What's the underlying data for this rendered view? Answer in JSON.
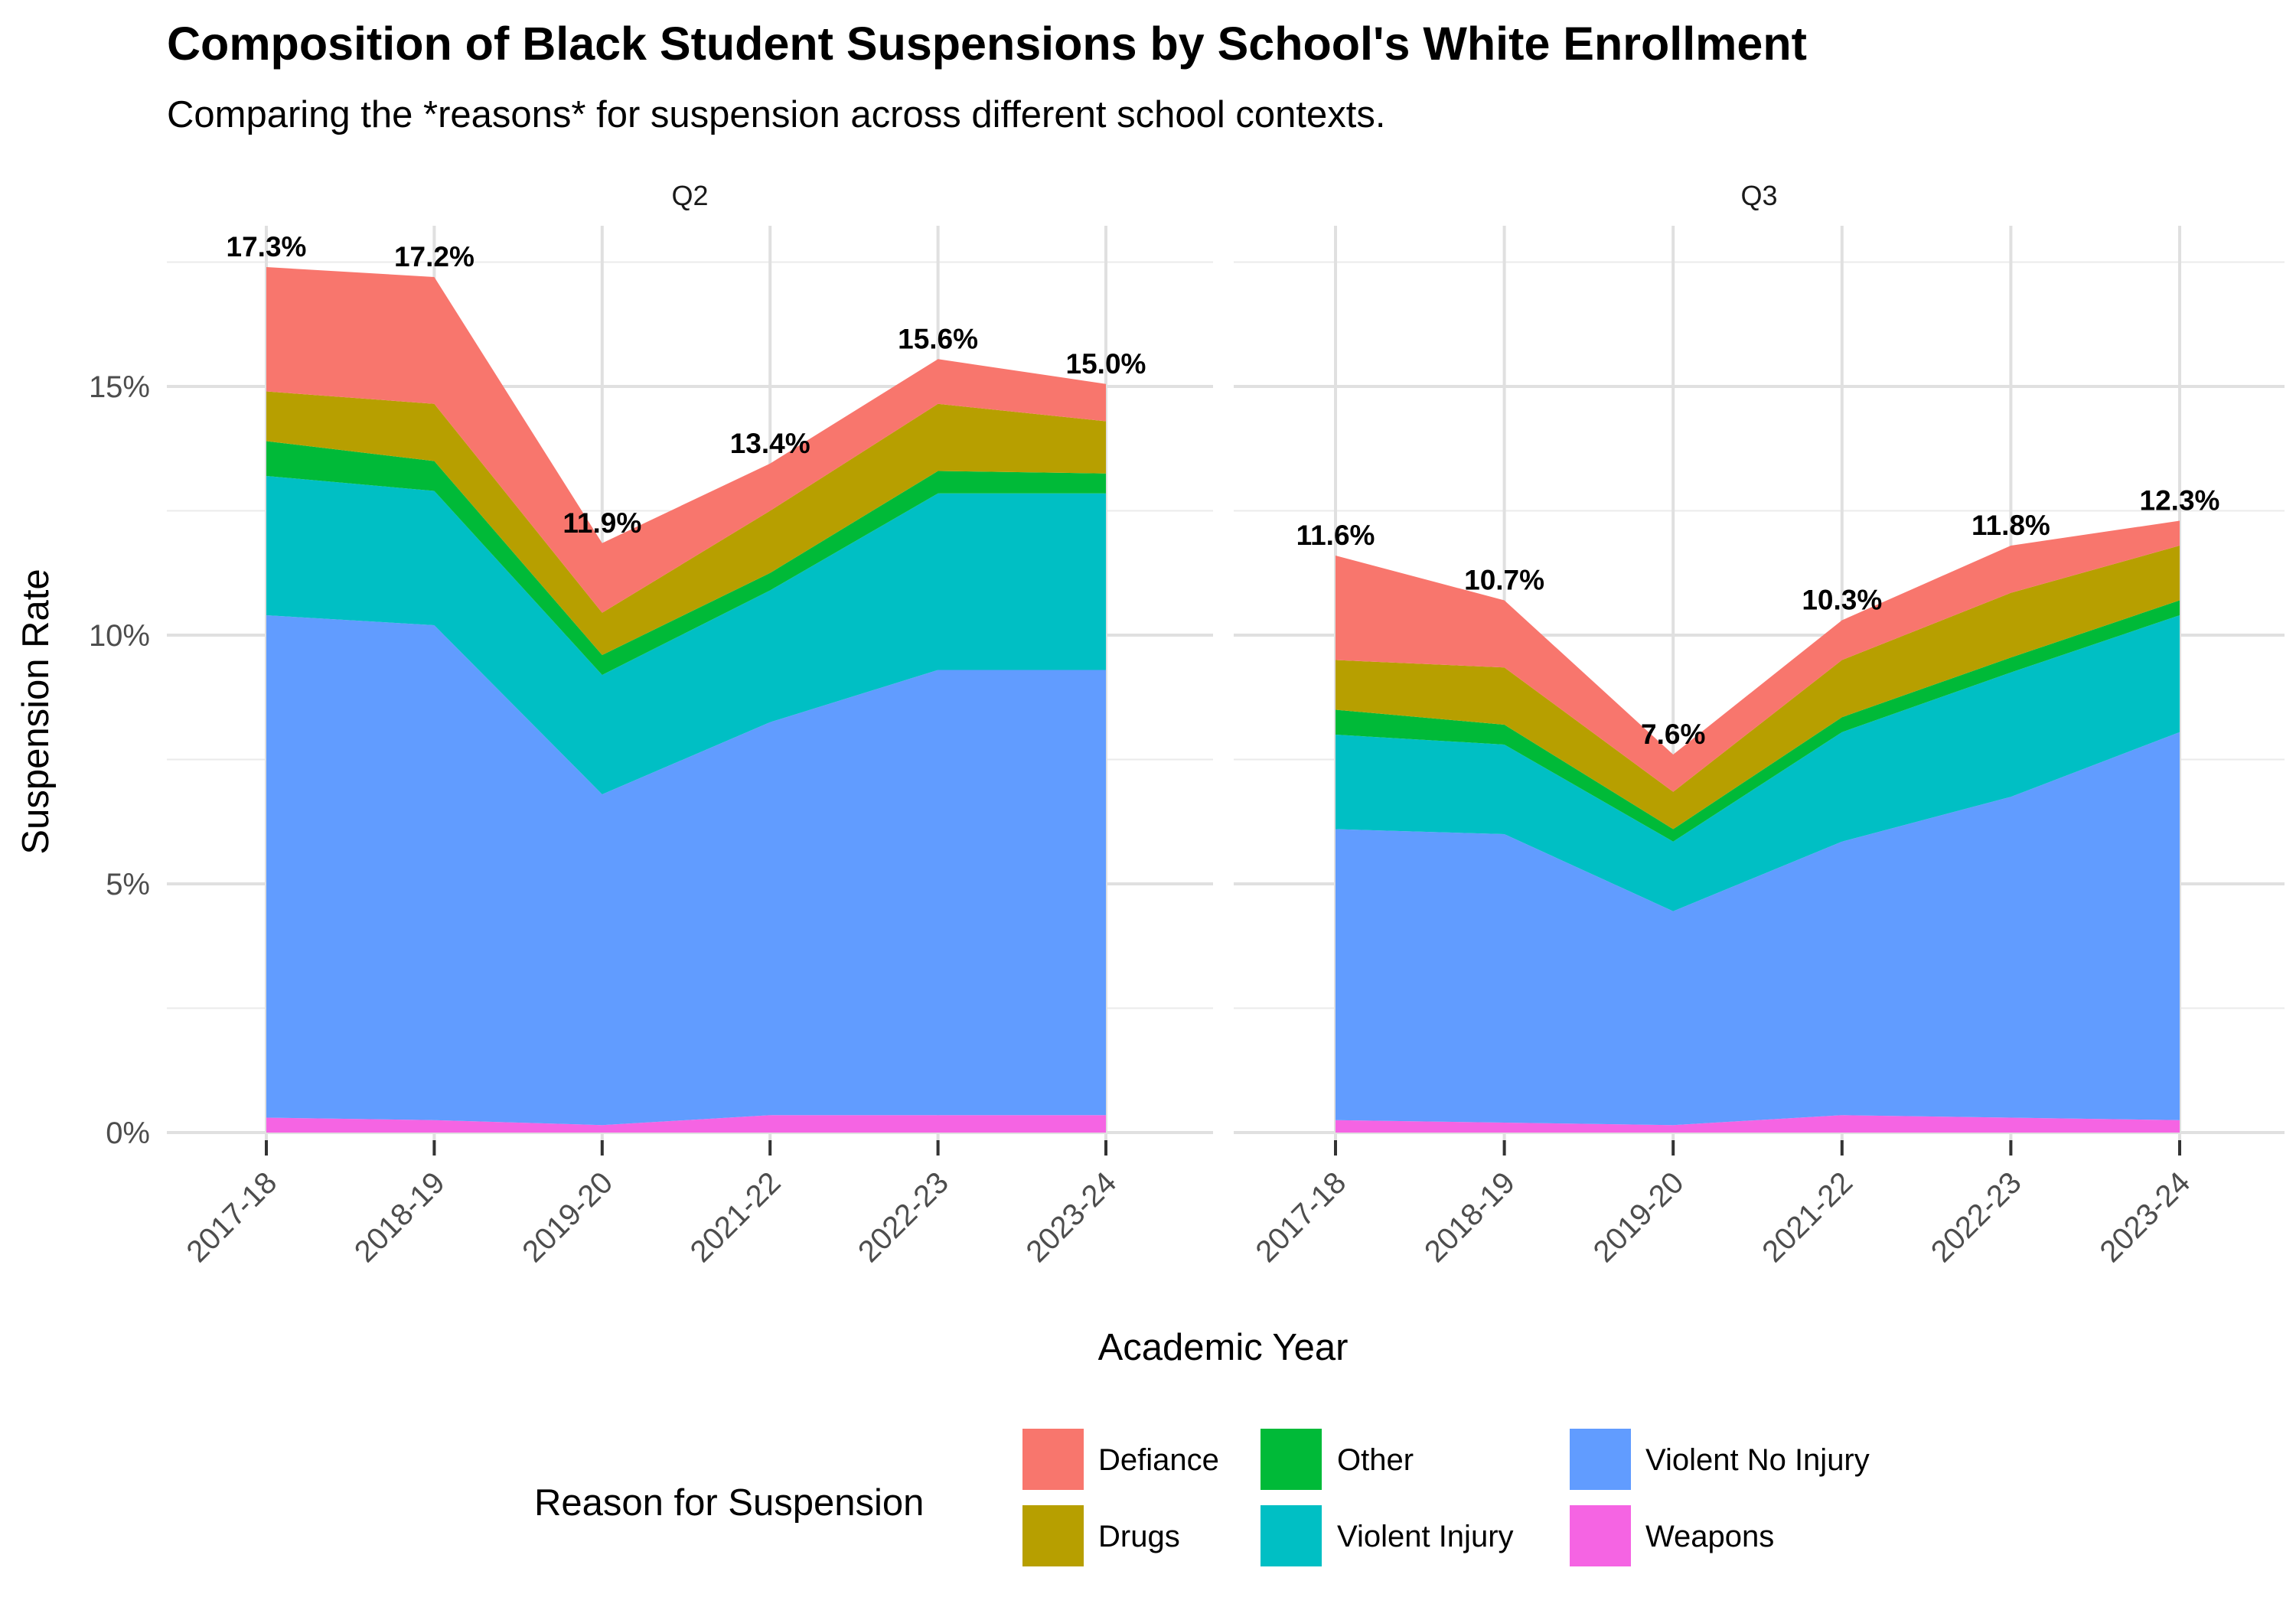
{
  "chart_data": {
    "type": "area",
    "title": "Composition of Black Student Suspensions by School's White Enrollment",
    "subtitle": "Comparing the *reasons* for suspension across different school contexts.",
    "xlabel": "Academic Year",
    "ylabel": "Suspension Rate",
    "categories": [
      "2017-18",
      "2018-19",
      "2019-20",
      "2021-22",
      "2022-23",
      "2023-24"
    ],
    "y_ticks": [
      "0%",
      "5%",
      "10%",
      "15%"
    ],
    "ylim": [
      0,
      17.5
    ],
    "stacked": true,
    "legend": {
      "title": "Reason for Suspension",
      "position": "bottom",
      "items": [
        "Defiance",
        "Drugs",
        "Other",
        "Violent Injury",
        "Violent No Injury",
        "Weapons"
      ]
    },
    "colors": {
      "Defiance": "#F8766D",
      "Drugs": "#B79F00",
      "Other": "#00BA38",
      "Violent Injury": "#00BFC4",
      "Violent No Injury": "#619CFF",
      "Weapons": "#F564E3"
    },
    "stack_order_bottom_to_top": [
      "Weapons",
      "Violent No Injury",
      "Violent Injury",
      "Other",
      "Drugs",
      "Defiance"
    ],
    "panels": [
      {
        "name": "Q2",
        "totals": [
          "17.3%",
          "17.2%",
          "11.9%",
          "13.4%",
          "15.6%",
          "15.0%"
        ],
        "series": [
          {
            "name": "Weapons",
            "values": [
              0.3,
              0.25,
              0.15,
              0.35,
              0.35,
              0.35
            ]
          },
          {
            "name": "Violent No Injury",
            "values": [
              10.1,
              9.95,
              6.65,
              7.9,
              8.95,
              8.95
            ]
          },
          {
            "name": "Violent Injury",
            "values": [
              2.8,
              2.7,
              2.4,
              2.65,
              3.55,
              3.55
            ]
          },
          {
            "name": "Other",
            "values": [
              0.7,
              0.6,
              0.4,
              0.35,
              0.45,
              0.4
            ]
          },
          {
            "name": "Drugs",
            "values": [
              1.0,
              1.15,
              0.85,
              1.25,
              1.35,
              1.05
            ]
          },
          {
            "name": "Defiance",
            "values": [
              2.5,
              2.55,
              1.4,
              0.95,
              0.9,
              0.75
            ]
          }
        ]
      },
      {
        "name": "Q3",
        "totals": [
          "11.6%",
          "10.7%",
          "7.6%",
          "10.3%",
          "11.8%",
          "12.3%"
        ],
        "series": [
          {
            "name": "Weapons",
            "values": [
              0.25,
              0.2,
              0.15,
              0.35,
              0.3,
              0.25
            ]
          },
          {
            "name": "Violent No Injury",
            "values": [
              5.85,
              5.8,
              4.3,
              5.5,
              6.45,
              7.8
            ]
          },
          {
            "name": "Violent Injury",
            "values": [
              1.9,
              1.8,
              1.4,
              2.2,
              2.5,
              2.35
            ]
          },
          {
            "name": "Other",
            "values": [
              0.5,
              0.4,
              0.25,
              0.3,
              0.3,
              0.3
            ]
          },
          {
            "name": "Drugs",
            "values": [
              1.0,
              1.15,
              0.75,
              1.15,
              1.3,
              1.1
            ]
          },
          {
            "name": "Defiance",
            "values": [
              2.1,
              1.35,
              0.75,
              0.8,
              0.95,
              0.5
            ]
          }
        ]
      }
    ]
  }
}
